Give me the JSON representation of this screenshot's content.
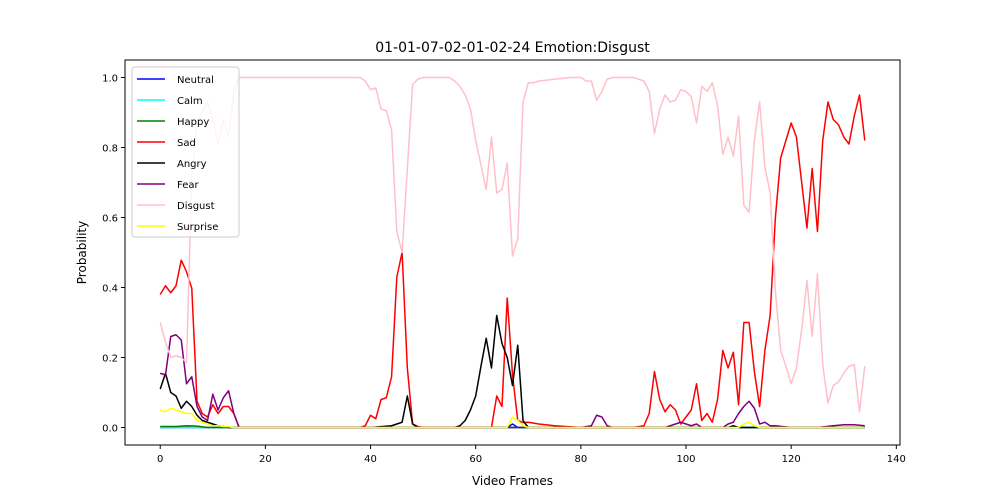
{
  "chart_data": {
    "type": "line",
    "title": "01-01-07-02-01-02-24 Emotion:Disgust",
    "xlabel": "Video Frames",
    "ylabel": "Probability",
    "xlim": [
      -6.7,
      140.7
    ],
    "ylim": [
      -0.05,
      1.05
    ],
    "xticks": [
      0,
      20,
      40,
      60,
      80,
      100,
      120,
      140
    ],
    "yticks": [
      0.0,
      0.2,
      0.4,
      0.6,
      0.8,
      1.0
    ],
    "ytick_labels": [
      "0.0",
      "0.2",
      "0.4",
      "0.6",
      "0.8",
      "1.0"
    ],
    "grid": false,
    "legend_position": "upper-left",
    "series": [
      {
        "name": "Neutral",
        "color": "#0000ff",
        "points": [
          [
            0,
            0.0
          ],
          [
            10,
            0.0
          ],
          [
            66,
            0.0
          ],
          [
            67,
            0.01
          ],
          [
            68,
            0.0
          ],
          [
            134,
            0.0
          ]
        ]
      },
      {
        "name": "Calm",
        "color": "#00ffff",
        "points": [
          [
            0,
            0.0
          ],
          [
            134,
            0.0
          ]
        ]
      },
      {
        "name": "Happy",
        "color": "#008000",
        "points": [
          [
            0,
            0.003
          ],
          [
            3,
            0.003
          ],
          [
            5,
            0.005
          ],
          [
            7,
            0.004
          ],
          [
            9,
            0.0
          ],
          [
            134,
            0.0
          ]
        ]
      },
      {
        "name": "Sad",
        "color": "#ff0000",
        "points": [
          [
            0,
            0.38
          ],
          [
            1,
            0.405
          ],
          [
            2,
            0.385
          ],
          [
            3,
            0.405
          ],
          [
            4,
            0.478
          ],
          [
            5,
            0.445
          ],
          [
            6,
            0.398
          ],
          [
            7,
            0.075
          ],
          [
            8,
            0.04
          ],
          [
            9,
            0.03
          ],
          [
            10,
            0.065
          ],
          [
            11,
            0.04
          ],
          [
            12,
            0.06
          ],
          [
            13,
            0.06
          ],
          [
            14,
            0.04
          ],
          [
            15,
            0.0
          ],
          [
            38,
            0.0
          ],
          [
            39,
            0.005
          ],
          [
            40,
            0.035
          ],
          [
            41,
            0.025
          ],
          [
            42,
            0.08
          ],
          [
            43,
            0.085
          ],
          [
            44,
            0.145
          ],
          [
            45,
            0.43
          ],
          [
            46,
            0.5
          ],
          [
            47,
            0.17
          ],
          [
            48,
            0.01
          ],
          [
            49,
            0.003
          ],
          [
            50,
            0.0
          ],
          [
            62,
            0.0
          ],
          [
            63,
            0.0
          ],
          [
            64,
            0.09
          ],
          [
            65,
            0.06
          ],
          [
            66,
            0.37
          ],
          [
            67,
            0.15
          ],
          [
            68,
            0.02
          ],
          [
            69,
            0.014
          ],
          [
            70,
            0.015
          ],
          [
            72,
            0.01
          ],
          [
            75,
            0.005
          ],
          [
            80,
            0.0
          ],
          [
            88,
            0.0
          ],
          [
            90,
            0.0
          ],
          [
            92,
            0.005
          ],
          [
            93,
            0.04
          ],
          [
            94,
            0.16
          ],
          [
            95,
            0.08
          ],
          [
            96,
            0.045
          ],
          [
            97,
            0.065
          ],
          [
            98,
            0.05
          ],
          [
            99,
            0.01
          ],
          [
            100,
            0.03
          ],
          [
            101,
            0.05
          ],
          [
            102,
            0.125
          ],
          [
            103,
            0.02
          ],
          [
            104,
            0.04
          ],
          [
            105,
            0.015
          ],
          [
            106,
            0.08
          ],
          [
            107,
            0.22
          ],
          [
            108,
            0.17
          ],
          [
            109,
            0.215
          ],
          [
            110,
            0.065
          ],
          [
            111,
            0.3
          ],
          [
            112,
            0.3
          ],
          [
            113,
            0.16
          ],
          [
            114,
            0.06
          ],
          [
            115,
            0.22
          ],
          [
            116,
            0.32
          ],
          [
            117,
            0.6
          ],
          [
            118,
            0.77
          ],
          [
            119,
            0.82
          ],
          [
            120,
            0.87
          ],
          [
            121,
            0.83
          ],
          [
            122,
            0.7
          ],
          [
            123,
            0.57
          ],
          [
            124,
            0.74
          ],
          [
            125,
            0.56
          ],
          [
            126,
            0.82
          ],
          [
            127,
            0.93
          ],
          [
            128,
            0.88
          ],
          [
            129,
            0.865
          ],
          [
            130,
            0.83
          ],
          [
            131,
            0.81
          ],
          [
            132,
            0.89
          ],
          [
            133,
            0.95
          ],
          [
            134,
            0.82
          ]
        ]
      },
      {
        "name": "Angry",
        "color": "#000000",
        "points": [
          [
            0,
            0.11
          ],
          [
            1,
            0.155
          ],
          [
            2,
            0.1
          ],
          [
            3,
            0.09
          ],
          [
            4,
            0.055
          ],
          [
            5,
            0.075
          ],
          [
            6,
            0.06
          ],
          [
            7,
            0.035
          ],
          [
            8,
            0.02
          ],
          [
            9,
            0.015
          ],
          [
            10,
            0.01
          ],
          [
            11,
            0.005
          ],
          [
            12,
            0.003
          ],
          [
            13,
            0.0
          ],
          [
            40,
            0.0
          ],
          [
            44,
            0.005
          ],
          [
            45,
            0.01
          ],
          [
            46,
            0.015
          ],
          [
            47,
            0.09
          ],
          [
            48,
            0.01
          ],
          [
            49,
            0.0
          ],
          [
            56,
            0.0
          ],
          [
            57,
            0.005
          ],
          [
            58,
            0.02
          ],
          [
            59,
            0.05
          ],
          [
            60,
            0.09
          ],
          [
            61,
            0.175
          ],
          [
            62,
            0.255
          ],
          [
            63,
            0.17
          ],
          [
            64,
            0.32
          ],
          [
            65,
            0.24
          ],
          [
            66,
            0.2
          ],
          [
            67,
            0.12
          ],
          [
            68,
            0.235
          ],
          [
            69,
            0.02
          ],
          [
            70,
            0.0
          ],
          [
            108,
            0.0
          ],
          [
            109,
            0.005
          ],
          [
            110,
            0.0
          ],
          [
            134,
            0.0
          ]
        ]
      },
      {
        "name": "Fear",
        "color": "#800080",
        "points": [
          [
            0,
            0.155
          ],
          [
            1,
            0.15
          ],
          [
            2,
            0.26
          ],
          [
            3,
            0.265
          ],
          [
            4,
            0.25
          ],
          [
            5,
            0.125
          ],
          [
            6,
            0.145
          ],
          [
            7,
            0.06
          ],
          [
            8,
            0.03
          ],
          [
            9,
            0.02
          ],
          [
            10,
            0.095
          ],
          [
            11,
            0.05
          ],
          [
            12,
            0.085
          ],
          [
            13,
            0.105
          ],
          [
            14,
            0.04
          ],
          [
            15,
            0.0
          ],
          [
            80,
            0.0
          ],
          [
            82,
            0.005
          ],
          [
            83,
            0.035
          ],
          [
            84,
            0.03
          ],
          [
            85,
            0.005
          ],
          [
            86,
            0.0
          ],
          [
            96,
            0.0
          ],
          [
            97,
            0.005
          ],
          [
            98,
            0.01
          ],
          [
            99,
            0.015
          ],
          [
            100,
            0.01
          ],
          [
            101,
            0.005
          ],
          [
            102,
            0.01
          ],
          [
            103,
            0.0
          ],
          [
            107,
            0.0
          ],
          [
            108,
            0.01
          ],
          [
            109,
            0.015
          ],
          [
            110,
            0.04
          ],
          [
            111,
            0.06
          ],
          [
            112,
            0.075
          ],
          [
            113,
            0.055
          ],
          [
            114,
            0.01
          ],
          [
            115,
            0.015
          ],
          [
            116,
            0.005
          ],
          [
            117,
            0.005
          ],
          [
            120,
            0.0
          ],
          [
            125,
            0.0
          ],
          [
            128,
            0.005
          ],
          [
            130,
            0.008
          ],
          [
            132,
            0.008
          ],
          [
            134,
            0.005
          ]
        ]
      },
      {
        "name": "Disgust",
        "color": "#ffc0cb",
        "points": [
          [
            0,
            0.3
          ],
          [
            1,
            0.245
          ],
          [
            2,
            0.2
          ],
          [
            3,
            0.205
          ],
          [
            4,
            0.2
          ],
          [
            5,
            0.185
          ],
          [
            6,
            0.72
          ],
          [
            7,
            0.87
          ],
          [
            8,
            0.9
          ],
          [
            9,
            0.93
          ],
          [
            10,
            0.88
          ],
          [
            11,
            0.81
          ],
          [
            12,
            0.88
          ],
          [
            13,
            0.83
          ],
          [
            14,
            0.96
          ],
          [
            15,
            1.0
          ],
          [
            20,
            1.0
          ],
          [
            25,
            1.0
          ],
          [
            30,
            1.0
          ],
          [
            35,
            1.0
          ],
          [
            38,
            1.0
          ],
          [
            39,
            0.99
          ],
          [
            40,
            0.965
          ],
          [
            41,
            0.97
          ],
          [
            42,
            0.91
          ],
          [
            43,
            0.905
          ],
          [
            44,
            0.85
          ],
          [
            45,
            0.56
          ],
          [
            46,
            0.5
          ],
          [
            47,
            0.74
          ],
          [
            48,
            0.98
          ],
          [
            49,
            0.995
          ],
          [
            50,
            1.0
          ],
          [
            55,
            1.0
          ],
          [
            56,
            0.99
          ],
          [
            57,
            0.975
          ],
          [
            58,
            0.95
          ],
          [
            59,
            0.91
          ],
          [
            60,
            0.82
          ],
          [
            61,
            0.75
          ],
          [
            62,
            0.68
          ],
          [
            63,
            0.83
          ],
          [
            64,
            0.67
          ],
          [
            65,
            0.68
          ],
          [
            66,
            0.755
          ],
          [
            67,
            0.49
          ],
          [
            68,
            0.54
          ],
          [
            69,
            0.93
          ],
          [
            70,
            0.985
          ],
          [
            71,
            0.985
          ],
          [
            72,
            0.99
          ],
          [
            75,
            0.995
          ],
          [
            78,
            1.0
          ],
          [
            80,
            1.0
          ],
          [
            81,
            0.99
          ],
          [
            82,
            0.99
          ],
          [
            83,
            0.935
          ],
          [
            84,
            0.96
          ],
          [
            85,
            0.995
          ],
          [
            86,
            1.0
          ],
          [
            90,
            1.0
          ],
          [
            91,
            0.995
          ],
          [
            92,
            0.99
          ],
          [
            93,
            0.96
          ],
          [
            94,
            0.84
          ],
          [
            95,
            0.91
          ],
          [
            96,
            0.95
          ],
          [
            97,
            0.93
          ],
          [
            98,
            0.935
          ],
          [
            99,
            0.965
          ],
          [
            100,
            0.96
          ],
          [
            101,
            0.945
          ],
          [
            102,
            0.87
          ],
          [
            103,
            0.975
          ],
          [
            104,
            0.96
          ],
          [
            105,
            0.985
          ],
          [
            106,
            0.92
          ],
          [
            107,
            0.78
          ],
          [
            108,
            0.83
          ],
          [
            109,
            0.775
          ],
          [
            110,
            0.89
          ],
          [
            111,
            0.635
          ],
          [
            112,
            0.615
          ],
          [
            113,
            0.82
          ],
          [
            114,
            0.93
          ],
          [
            115,
            0.745
          ],
          [
            116,
            0.67
          ],
          [
            117,
            0.39
          ],
          [
            118,
            0.22
          ],
          [
            119,
            0.175
          ],
          [
            120,
            0.125
          ],
          [
            121,
            0.17
          ],
          [
            122,
            0.28
          ],
          [
            123,
            0.42
          ],
          [
            124,
            0.26
          ],
          [
            125,
            0.44
          ],
          [
            126,
            0.18
          ],
          [
            127,
            0.07
          ],
          [
            128,
            0.12
          ],
          [
            129,
            0.13
          ],
          [
            130,
            0.155
          ],
          [
            131,
            0.175
          ],
          [
            132,
            0.18
          ],
          [
            133,
            0.045
          ],
          [
            134,
            0.175
          ]
        ]
      },
      {
        "name": "Surprise",
        "color": "#ffff00",
        "points": [
          [
            0,
            0.05
          ],
          [
            1,
            0.045
          ],
          [
            2,
            0.055
          ],
          [
            3,
            0.05
          ],
          [
            4,
            0.045
          ],
          [
            5,
            0.04
          ],
          [
            6,
            0.04
          ],
          [
            7,
            0.02
          ],
          [
            8,
            0.015
          ],
          [
            9,
            0.01
          ],
          [
            10,
            0.005
          ],
          [
            11,
            0.005
          ],
          [
            12,
            0.003
          ],
          [
            13,
            0.002
          ],
          [
            14,
            0.0
          ],
          [
            66,
            0.0
          ],
          [
            67,
            0.03
          ],
          [
            68,
            0.02
          ],
          [
            69,
            0.005
          ],
          [
            70,
            0.0
          ],
          [
            110,
            0.0
          ],
          [
            111,
            0.01
          ],
          [
            112,
            0.015
          ],
          [
            113,
            0.005
          ],
          [
            114,
            0.0
          ],
          [
            134,
            0.0
          ]
        ]
      }
    ]
  }
}
